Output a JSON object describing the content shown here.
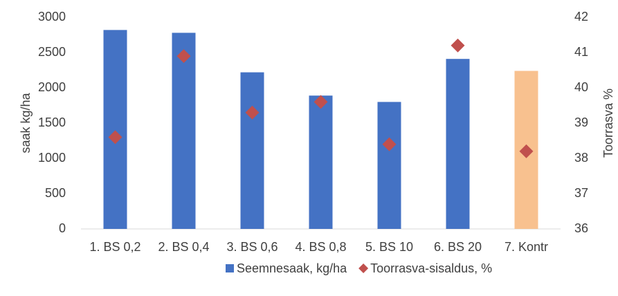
{
  "chart_data": {
    "type": "bar",
    "categories": [
      "1. BS 0,2",
      "2. BS 0,4",
      "3. BS 0,6",
      "4. BS 0,8",
      "5. BS 10",
      "6. BS 20",
      "7. Kontr"
    ],
    "y_label": "saak kg/ha",
    "y2_label": "Toorrasva %",
    "ylim": [
      0,
      3000
    ],
    "yticks": [
      0,
      500,
      1000,
      1500,
      2000,
      2500,
      3000
    ],
    "y2lim": [
      36,
      42
    ],
    "y2ticks": [
      36,
      37,
      38,
      39,
      40,
      41,
      42
    ],
    "legend": "bottom",
    "series": [
      {
        "name": "Seemnesaak, kg/ha",
        "type": "bar",
        "color": "#4472c4",
        "colors": [
          "#4472c4",
          "#4472c4",
          "#4472c4",
          "#4472c4",
          "#4472c4",
          "#4472c4",
          "#f8c18f"
        ],
        "values": [
          2820,
          2780,
          2220,
          1890,
          1800,
          2410,
          2240
        ]
      },
      {
        "name": "Toorrasva-sisaldus, %",
        "type": "diamond",
        "axis": "y2",
        "color": "#c0504d",
        "values": [
          38.6,
          40.9,
          39.3,
          39.6,
          38.4,
          41.2,
          38.2
        ]
      }
    ]
  }
}
